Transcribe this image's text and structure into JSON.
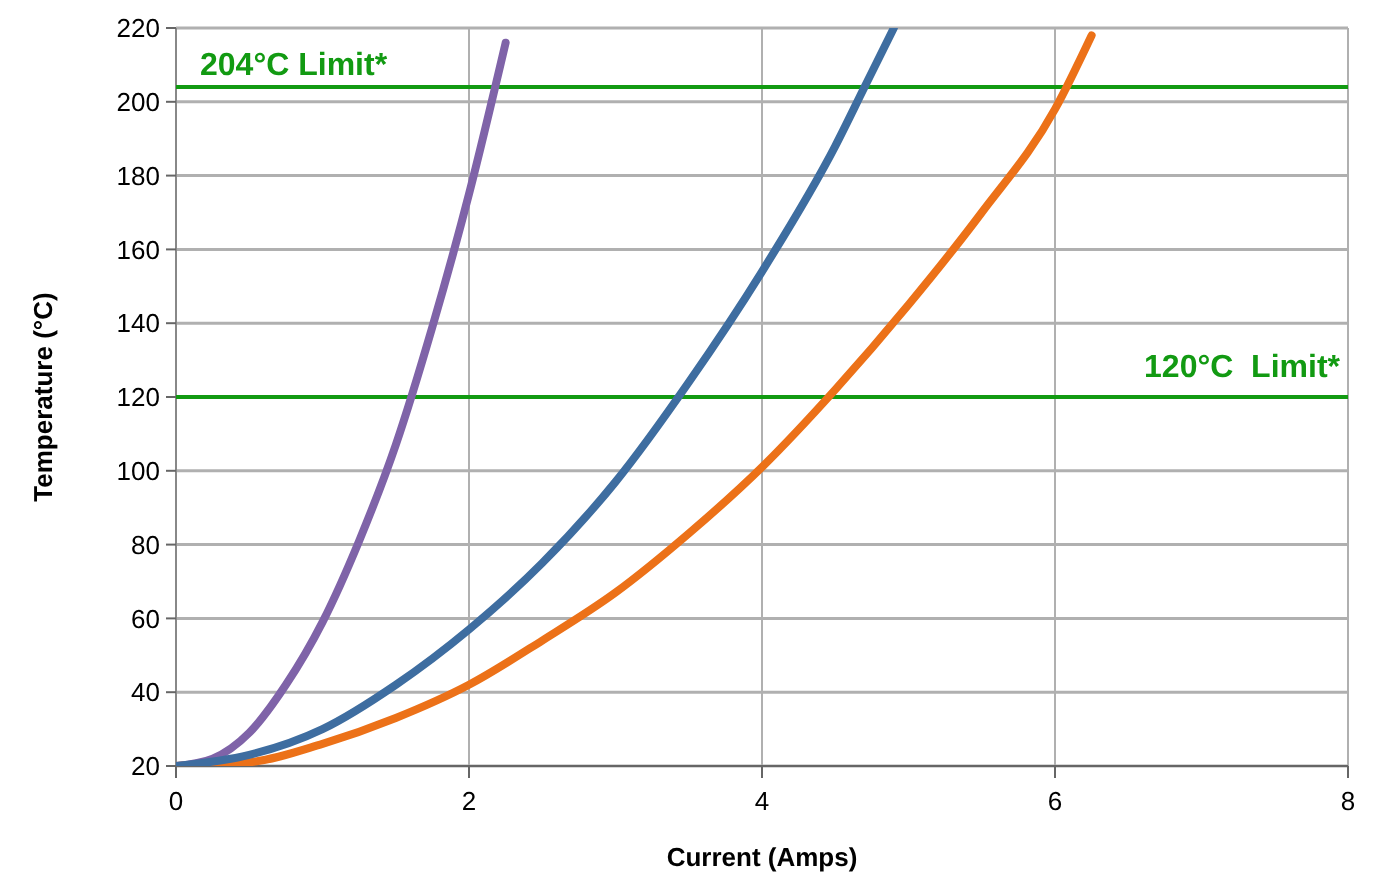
{
  "chart_data": {
    "type": "line",
    "xlabel": "Current (Amps)",
    "ylabel": "Temperature (°C)",
    "xlim": [
      0,
      8
    ],
    "xticks": [
      0,
      2,
      4,
      6,
      8
    ],
    "ylim": [
      20,
      220
    ],
    "yticks": [
      20,
      40,
      60,
      80,
      100,
      120,
      140,
      160,
      180,
      200,
      220
    ],
    "grid": true,
    "line_style": "solid",
    "series": [
      {
        "color": "#7f63a8",
        "x": [
          0,
          0.25,
          0.5,
          0.75,
          1,
          1.25,
          1.5,
          1.75,
          2,
          2.25
        ],
        "values": [
          20,
          22,
          29,
          42,
          59,
          81,
          107,
          139,
          175,
          216
        ]
      },
      {
        "color": "#ec7118",
        "x": [
          0,
          0.5,
          1,
          1.5,
          2,
          2.5,
          3,
          3.5,
          4,
          4.5,
          5,
          5.5,
          6,
          6.25
        ],
        "values": [
          20,
          21,
          26,
          33,
          42,
          54,
          67,
          83,
          101,
          122,
          145,
          170,
          198,
          218
        ]
      },
      {
        "color": "#3e6da0",
        "x": [
          0,
          0.5,
          1,
          1.5,
          2,
          2.5,
          3,
          3.5,
          4,
          4.5,
          4.7,
          4.9
        ],
        "values": [
          20,
          23,
          30,
          42,
          57,
          75,
          97,
          124,
          154,
          188,
          204,
          220
        ]
      }
    ],
    "ref_lines": [
      {
        "axis": "y",
        "value": 204,
        "label": "204°C Limit*",
        "color": "#129a12"
      },
      {
        "axis": "y",
        "value": 120,
        "label": "120°C  Limit*",
        "color": "#129a12"
      }
    ]
  }
}
